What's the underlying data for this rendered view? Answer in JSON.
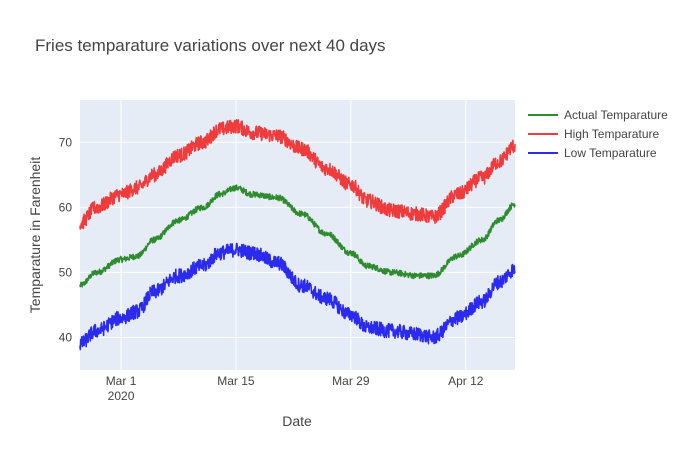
{
  "chart_data": {
    "type": "line",
    "title": "Fries temparature variations over next 40 days",
    "xlabel": "Date",
    "ylabel": "Temparature in Farenheit",
    "x_range": [
      "2020-02-25",
      "2020-04-18"
    ],
    "y_range": [
      35,
      76.5
    ],
    "x_ticks": [
      {
        "date": "2020-03-01",
        "label": "Mar 1",
        "sublabel": "2020"
      },
      {
        "date": "2020-03-15",
        "label": "Mar 15",
        "sublabel": ""
      },
      {
        "date": "2020-03-29",
        "label": "Mar 29",
        "sublabel": ""
      },
      {
        "date": "2020-04-12",
        "label": "Apr 12",
        "sublabel": ""
      }
    ],
    "y_ticks": [
      40,
      50,
      60,
      70
    ],
    "grid": true,
    "legend_position": "top-right",
    "series": [
      {
        "name": "Actual Temparature",
        "color": "#2e8b2e",
        "points": [
          [
            "2020-02-25",
            48
          ],
          [
            "2020-02-27",
            50
          ],
          [
            "2020-03-01",
            52
          ],
          [
            "2020-03-03",
            52.5
          ],
          [
            "2020-03-05",
            55
          ],
          [
            "2020-03-08",
            58
          ],
          [
            "2020-03-11",
            60
          ],
          [
            "2020-03-13",
            62
          ],
          [
            "2020-03-15",
            63
          ],
          [
            "2020-03-17",
            62
          ],
          [
            "2020-03-20",
            61.5
          ],
          [
            "2020-03-23",
            59
          ],
          [
            "2020-03-26",
            56
          ],
          [
            "2020-03-29",
            53
          ],
          [
            "2020-03-31",
            51
          ],
          [
            "2020-04-03",
            50
          ],
          [
            "2020-04-06",
            49.5
          ],
          [
            "2020-04-08",
            49.5
          ],
          [
            "2020-04-11",
            52.5
          ],
          [
            "2020-04-14",
            55
          ],
          [
            "2020-04-16",
            58
          ],
          [
            "2020-04-18",
            60.5
          ]
        ]
      },
      {
        "name": "High Temparature",
        "color": "#ef3b3b",
        "points": [
          [
            "2020-02-25",
            57.5
          ],
          [
            "2020-02-27",
            60
          ],
          [
            "2020-03-01",
            62
          ],
          [
            "2020-03-03",
            63
          ],
          [
            "2020-03-05",
            65
          ],
          [
            "2020-03-08",
            68
          ],
          [
            "2020-03-11",
            70
          ],
          [
            "2020-03-13",
            72
          ],
          [
            "2020-03-15",
            72.5
          ],
          [
            "2020-03-17",
            71.5
          ],
          [
            "2020-03-20",
            71
          ],
          [
            "2020-03-23",
            69
          ],
          [
            "2020-03-26",
            66
          ],
          [
            "2020-03-29",
            63.5
          ],
          [
            "2020-03-31",
            61
          ],
          [
            "2020-04-03",
            59.5
          ],
          [
            "2020-04-06",
            59
          ],
          [
            "2020-04-08",
            58.5
          ],
          [
            "2020-04-11",
            62
          ],
          [
            "2020-04-14",
            64.5
          ],
          [
            "2020-04-16",
            67
          ],
          [
            "2020-04-18",
            69.5
          ]
        ]
      },
      {
        "name": " Low Temparature",
        "color": "#2b2bef",
        "points": [
          [
            "2020-02-25",
            39
          ],
          [
            "2020-02-27",
            41
          ],
          [
            "2020-03-01",
            43
          ],
          [
            "2020-03-03",
            44
          ],
          [
            "2020-03-05",
            47
          ],
          [
            "2020-03-08",
            49.5
          ],
          [
            "2020-03-11",
            51
          ],
          [
            "2020-03-13",
            53
          ],
          [
            "2020-03-15",
            53.5
          ],
          [
            "2020-03-17",
            53
          ],
          [
            "2020-03-20",
            51.5
          ],
          [
            "2020-03-23",
            48
          ],
          [
            "2020-03-26",
            46
          ],
          [
            "2020-03-29",
            43.5
          ],
          [
            "2020-03-31",
            41.5
          ],
          [
            "2020-04-03",
            41
          ],
          [
            "2020-04-06",
            40.5
          ],
          [
            "2020-04-08",
            40
          ],
          [
            "2020-04-11",
            43
          ],
          [
            "2020-04-14",
            45.5
          ],
          [
            "2020-04-16",
            48.5
          ],
          [
            "2020-04-18",
            50.5
          ]
        ]
      }
    ]
  }
}
